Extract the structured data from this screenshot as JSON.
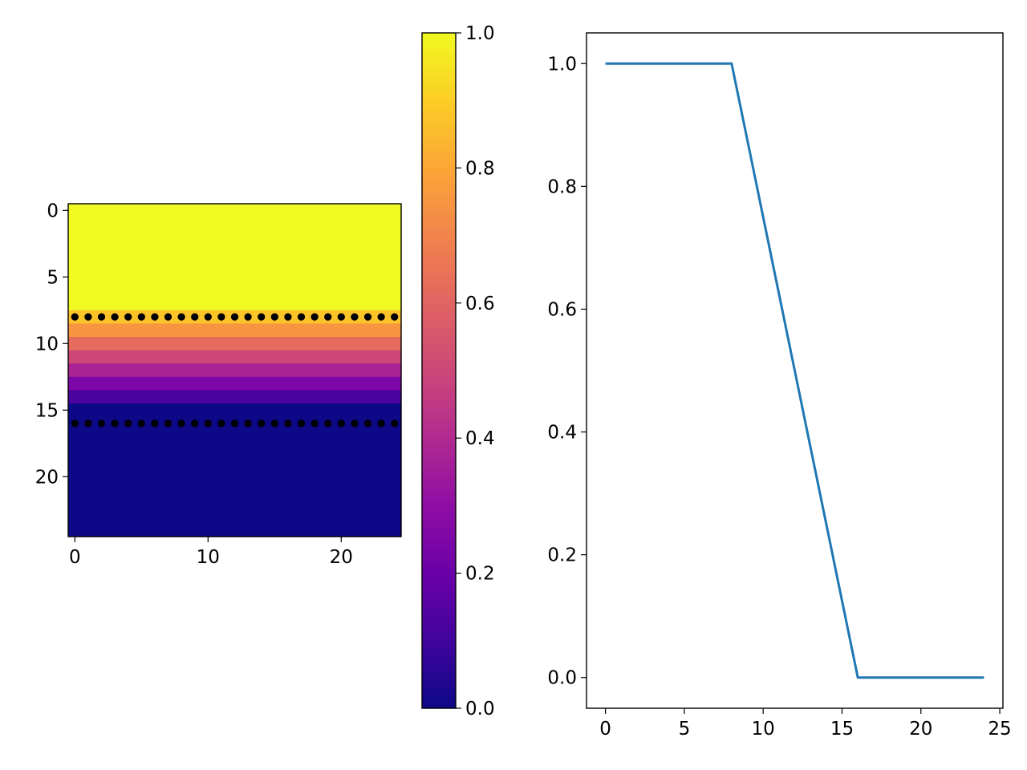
{
  "chart_data": [
    {
      "type": "heatmap",
      "title": "",
      "xlabel": "",
      "ylabel": "",
      "x_ticks": [
        "0",
        "10",
        "20"
      ],
      "y_ticks": [
        "0",
        "5",
        "10",
        "15",
        "20"
      ],
      "colormap": "plasma",
      "y_range_inverted": [
        -0.5,
        24.5
      ],
      "x_range": [
        -0.5,
        24.5
      ],
      "row_values": [
        1,
        1,
        1,
        1,
        1,
        1,
        1,
        1,
        0.875,
        0.75,
        0.625,
        0.5,
        0.375,
        0.25,
        0.125,
        0,
        0,
        0,
        0,
        0,
        0,
        0,
        0,
        0,
        0
      ],
      "columns": 25,
      "markers": {
        "color": "#000000",
        "rows": [
          8,
          16
        ],
        "x": [
          0,
          1,
          2,
          3,
          4,
          5,
          6,
          7,
          8,
          9,
          10,
          11,
          12,
          13,
          14,
          15,
          16,
          17,
          18,
          19,
          20,
          21,
          22,
          23,
          24
        ]
      }
    },
    {
      "type": "colorbar",
      "colormap": "plasma",
      "range": [
        0,
        1
      ],
      "ticks": [
        "0.0",
        "0.2",
        "0.4",
        "0.6",
        "0.8",
        "1.0"
      ]
    },
    {
      "type": "line",
      "title": "",
      "xlabel": "",
      "ylabel": "",
      "x_ticks": [
        "0",
        "5",
        "10",
        "15",
        "20",
        "25"
      ],
      "y_ticks": [
        "0.0",
        "0.2",
        "0.4",
        "0.6",
        "0.8",
        "1.0"
      ],
      "xlim": [
        -1.2,
        25.2
      ],
      "ylim": [
        -0.05,
        1.05
      ],
      "grid": false,
      "series": [
        {
          "color": "#1f77b4",
          "x": [
            0,
            1,
            2,
            3,
            4,
            5,
            6,
            7,
            8,
            9,
            10,
            11,
            12,
            13,
            14,
            15,
            16,
            17,
            18,
            19,
            20,
            21,
            22,
            23,
            24
          ],
          "y": [
            1,
            1,
            1,
            1,
            1,
            1,
            1,
            1,
            1,
            0.875,
            0.75,
            0.625,
            0.5,
            0.375,
            0.25,
            0.125,
            0,
            0,
            0,
            0,
            0,
            0,
            0,
            0,
            0
          ]
        }
      ]
    }
  ]
}
